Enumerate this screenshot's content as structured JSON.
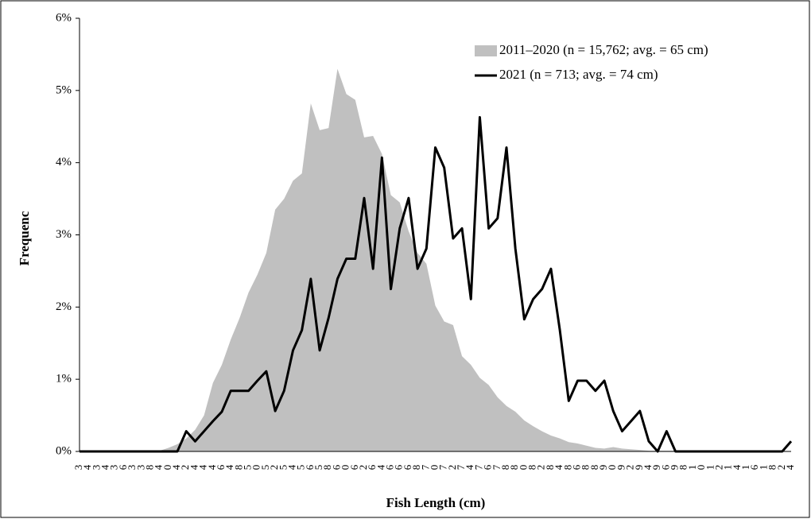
{
  "chart_data": {
    "type": "combo",
    "x_label": "Fish Length (cm)",
    "y_label": "Frequenc",
    "categories": [
      "3",
      "4",
      "3",
      "4",
      "3",
      "6",
      "3",
      "3",
      "8",
      "4",
      "0",
      "4",
      "2",
      "4",
      "4",
      "4",
      "6",
      "4",
      "8",
      "5",
      "0",
      "5",
      "2",
      "5",
      "4",
      "5",
      "6",
      "5",
      "8",
      "6",
      "0",
      "6",
      "2",
      "6",
      "4",
      "6",
      "6",
      "6",
      "8",
      "7",
      "0",
      "7",
      "2",
      "7",
      "4",
      "7",
      "6",
      "7",
      "8",
      "8",
      "0",
      "8",
      "2",
      "8",
      "4",
      "8",
      "6",
      "8",
      "8",
      "9",
      "0",
      "9",
      "2",
      "9",
      "4",
      "9",
      "6",
      "9",
      "8",
      "1",
      "0",
      "1",
      "2",
      "1",
      "4",
      "1",
      "6",
      "1",
      "8",
      "2",
      "4"
    ],
    "series": [
      {
        "name": "2011–2020 (n = 15,762; avg. = 65 cm)",
        "type": "area",
        "color": "#c0c0c0",
        "values": [
          0,
          0,
          0,
          0,
          0,
          0,
          0,
          0,
          0,
          0.01,
          0.05,
          0.1,
          0.18,
          0.3,
          0.5,
          0.95,
          1.2,
          1.55,
          1.85,
          2.2,
          2.45,
          2.75,
          3.35,
          3.5,
          3.75,
          3.85,
          4.82,
          4.45,
          4.48,
          5.3,
          4.95,
          4.87,
          4.35,
          4.37,
          4.12,
          3.55,
          3.45,
          3.05,
          2.75,
          2.6,
          2.02,
          1.8,
          1.75,
          1.32,
          1.2,
          1.02,
          0.92,
          0.75,
          0.63,
          0.55,
          0.43,
          0.35,
          0.28,
          0.22,
          0.18,
          0.13,
          0.11,
          0.08,
          0.05,
          0.04,
          0.06,
          0.04,
          0.03,
          0.02,
          0.01,
          0.01,
          0.01,
          0.01,
          0,
          0,
          0,
          0,
          0,
          0,
          0,
          0,
          0,
          0,
          0,
          0,
          0
        ]
      },
      {
        "name": "2021 (n = 713; avg. = 74 cm)",
        "type": "line",
        "color": "#000000",
        "values": [
          0,
          0,
          0,
          0,
          0,
          0,
          0,
          0,
          0,
          0,
          0,
          0,
          0.28,
          0.14,
          0.28,
          0.42,
          0.55,
          0.84,
          0.84,
          0.84,
          0.98,
          1.11,
          0.56,
          0.84,
          1.4,
          1.68,
          2.39,
          1.4,
          1.85,
          2.39,
          2.67,
          2.67,
          3.51,
          2.53,
          4.07,
          2.25,
          3.09,
          3.51,
          2.53,
          2.81,
          4.21,
          3.93,
          2.95,
          3.09,
          2.11,
          4.63,
          3.09,
          3.23,
          4.21,
          2.81,
          1.83,
          2.11,
          2.25,
          2.53,
          1.68,
          0.7,
          0.98,
          0.98,
          0.84,
          0.98,
          0.56,
          0.28,
          0.42,
          0.56,
          0.14,
          0,
          0.28,
          0,
          0,
          0,
          0,
          0,
          0,
          0,
          0,
          0,
          0,
          0,
          0,
          0,
          0.14
        ]
      }
    ],
    "ylim": [
      0,
      6
    ],
    "yticks": [
      {
        "value": 0,
        "label": "0%"
      },
      {
        "value": 1,
        "label": "1%"
      },
      {
        "value": 2,
        "label": "2%"
      },
      {
        "value": 3,
        "label": "3%"
      },
      {
        "value": 4,
        "label": "4%"
      },
      {
        "value": 5,
        "label": "5%"
      },
      {
        "value": 6,
        "label": "6%"
      }
    ],
    "grid": false,
    "legend": "top-right"
  }
}
